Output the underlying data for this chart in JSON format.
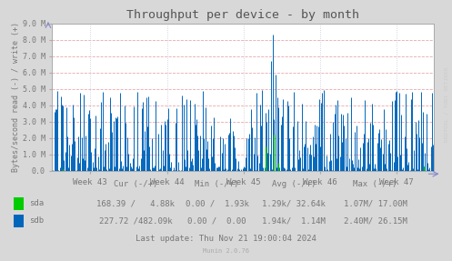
{
  "title": "Throughput per device - by month",
  "ylabel": "Bytes/second read (-) / write (+)",
  "ylim": [
    0,
    9000000
  ],
  "ytick_labels": [
    "0.0",
    "1.0 M",
    "2.0 M",
    "3.0 M",
    "4.0 M",
    "5.0 M",
    "6.0 M",
    "7.0 M",
    "8.0 M",
    "9.0 M"
  ],
  "ytick_vals": [
    0,
    1000000,
    2000000,
    3000000,
    4000000,
    5000000,
    6000000,
    7000000,
    8000000,
    9000000
  ],
  "xtick_labels": [
    "Week 43",
    "Week 44",
    "Week 45",
    "Week 46",
    "Week 47"
  ],
  "bg_color": "#d8d8d8",
  "plot_bg_color": "#ffffff",
  "grid_h_color": "#e8aaaa",
  "grid_v_color": "#c8c8e0",
  "sda_color": "#00cc00",
  "sdb_color": "#0066bb",
  "title_color": "#555555",
  "text_color": "#777777",
  "watermark": "RRDTOOL / TOBI OETIKER",
  "last_update": "Last update: Thu Nov 21 19:00:04 2024",
  "munin_version": "Munin 2.0.76",
  "legend_header": "Cur (-/+)            Min (-/+)          Avg (-/+)          Max (-/+)",
  "sda_label": "sda",
  "sdb_label": "sdb",
  "sda_cur": "168.39 /   4.88k",
  "sda_min": "0.00 /  1.93k",
  "sda_avg": "1.29k/ 32.64k",
  "sda_max": "1.07M/ 17.00M",
  "sdb_cur": "227.72 /482.09k",
  "sdb_min": "0.00 /  0.00",
  "sdb_avg": "1.94k/  1.14M",
  "sdb_max": "2.40M/ 26.15M"
}
